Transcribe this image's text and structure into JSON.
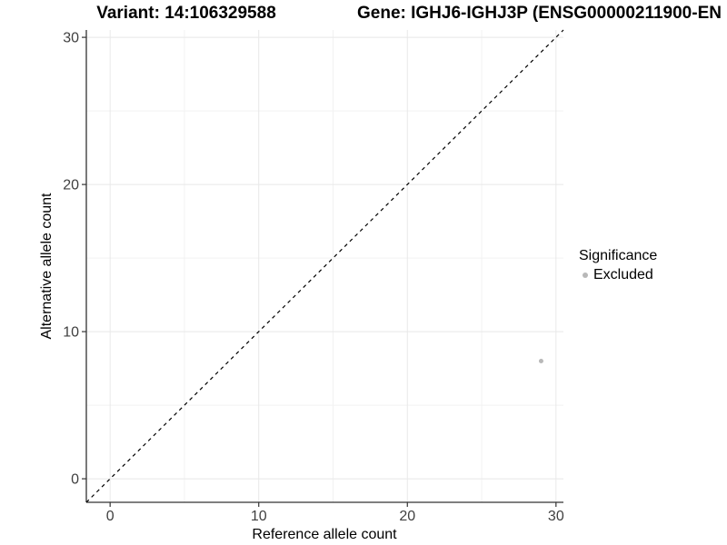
{
  "header": {
    "variant_title": "Variant: 14:106329588",
    "gene_title": "Gene: IGHJ6-IGHJ3P (ENSG00000211900-EN"
  },
  "chart_data": {
    "type": "scatter",
    "xlabel": "Reference allele count",
    "ylabel": "Alternative allele count",
    "xlim": [
      -1.6,
      30.5
    ],
    "ylim": [
      -1.6,
      30.5
    ],
    "x_major_ticks": [
      0,
      10,
      20,
      30
    ],
    "y_major_ticks": [
      0,
      10,
      20,
      30
    ],
    "x_minor_ticks": [
      5,
      15,
      25
    ],
    "y_minor_ticks": [
      5,
      15,
      25
    ],
    "grid": true,
    "reference_line": {
      "type": "identity",
      "slope": 1,
      "intercept": 0,
      "style": "dashed",
      "color": "#000000"
    },
    "series": [
      {
        "name": "Excluded",
        "color": "#b8b8b8",
        "points": [
          {
            "x": 29,
            "y": 8
          }
        ]
      }
    ],
    "legend": {
      "title": "Significance",
      "position": "right",
      "items": [
        {
          "label": "Excluded",
          "color": "#b8b8b8"
        }
      ]
    }
  },
  "colors": {
    "axis": "#333333",
    "tick_label": "#404040",
    "grid_major": "#e8e8e8",
    "grid_minor": "#f2f2f2",
    "background": "#ffffff"
  }
}
